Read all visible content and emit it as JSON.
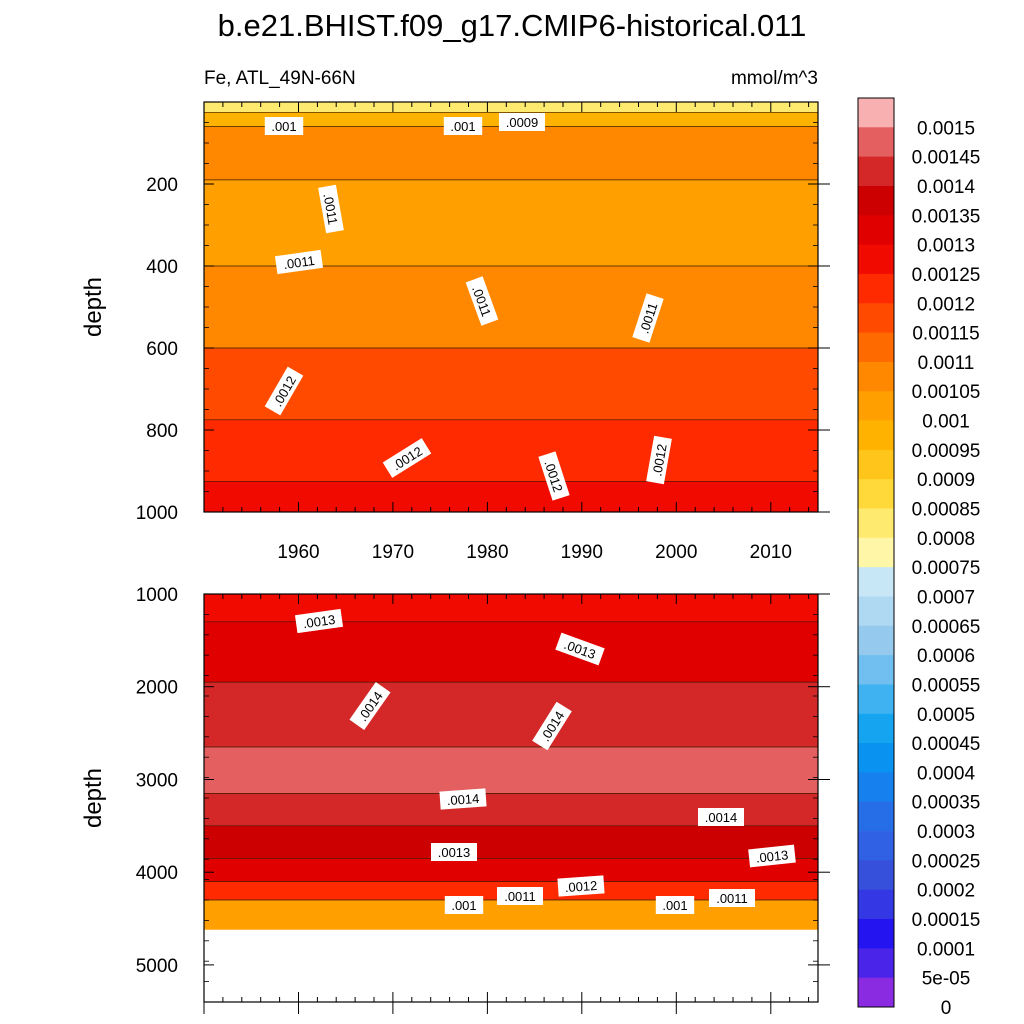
{
  "chart_data": {
    "type": "heatmap",
    "title": "b.e21.BHIST.f09_g17.CMIP6-historical.011",
    "variable_label": "Fe, ATL_49N-66N",
    "units": "mmol/m^3",
    "x_ticks": [
      "1960",
      "1970",
      "1980",
      "1990",
      "2000",
      "2010"
    ],
    "x_range": [
      1950,
      2015
    ],
    "panels": [
      {
        "name": "upper",
        "ylabel": "depth",
        "ylim": [
          1000,
          0
        ],
        "y_ticks": [
          "200",
          "400",
          "600",
          "800",
          "1000"
        ],
        "depth_bands": [
          {
            "depth": 10,
            "value": 0.0008
          },
          {
            "depth": 40,
            "value": 0.00095
          },
          {
            "depth": 80,
            "value": 0.00105
          },
          {
            "depth": 300,
            "value": 0.001
          },
          {
            "depth": 500,
            "value": 0.00105
          },
          {
            "depth": 700,
            "value": 0.00115
          },
          {
            "depth": 850,
            "value": 0.0012
          },
          {
            "depth": 1000,
            "value": 0.00125
          }
        ],
        "contour_labels": [
          ".001",
          ".001",
          ".0009",
          ".0011",
          ".0011",
          ".0011",
          ".0011",
          ".0012",
          ".0012",
          ".0012",
          ".0012"
        ]
      },
      {
        "name": "lower",
        "ylabel": "depth",
        "ylim": [
          5400,
          1000
        ],
        "y_ticks": [
          "1000",
          "2000",
          "3000",
          "4000",
          "5000"
        ],
        "data_bottom_depth": 4620,
        "depth_bands": [
          {
            "depth": 1000,
            "value": 0.00125
          },
          {
            "depth": 1600,
            "value": 0.0013
          },
          {
            "depth": 2300,
            "value": 0.0014
          },
          {
            "depth": 3000,
            "value": 0.00145
          },
          {
            "depth": 3300,
            "value": 0.0014
          },
          {
            "depth": 3700,
            "value": 0.00135
          },
          {
            "depth": 4000,
            "value": 0.0013
          },
          {
            "depth": 4200,
            "value": 0.0012
          },
          {
            "depth": 4400,
            "value": 0.001
          }
        ],
        "contour_labels": [
          ".0013",
          ".0013",
          ".0014",
          ".0014",
          ".0014",
          ".0014",
          ".0013",
          ".0013",
          ".001",
          ".0011",
          ".0012",
          ".001",
          ".0011"
        ]
      }
    ],
    "colorbar": {
      "labels": [
        "0.0015",
        "0.00145",
        "0.0014",
        "0.00135",
        "0.0013",
        "0.00125",
        "0.0012",
        "0.00115",
        "0.0011",
        "0.00105",
        "0.001",
        "0.00095",
        "0.0009",
        "0.00085",
        "0.0008",
        "0.00075",
        "0.0007",
        "0.00065",
        "0.0006",
        "0.00055",
        "0.0005",
        "0.00045",
        "0.0004",
        "0.00035",
        "0.0003",
        "0.00025",
        "0.0002",
        "0.00015",
        "0.0001",
        "5e-05",
        "0"
      ],
      "colors": [
        "#f9b0b0",
        "#e46060",
        "#d42828",
        "#cc0000",
        "#e00000",
        "#f00a00",
        "#ff2a00",
        "#ff4a00",
        "#ff6a00",
        "#ff8800",
        "#ffa000",
        "#ffb300",
        "#ffc51a",
        "#ffd93a",
        "#ffea70",
        "#fff6a8",
        "#c7e6f6",
        "#afd8f2",
        "#95caee",
        "#70bff0",
        "#3fb2f2",
        "#14a4f0",
        "#0a92f0",
        "#1680ee",
        "#266ee8",
        "#3060e4",
        "#3650dc",
        "#3438e4",
        "#2414f0",
        "#4a24e8",
        "#8a2be2"
      ]
    }
  }
}
